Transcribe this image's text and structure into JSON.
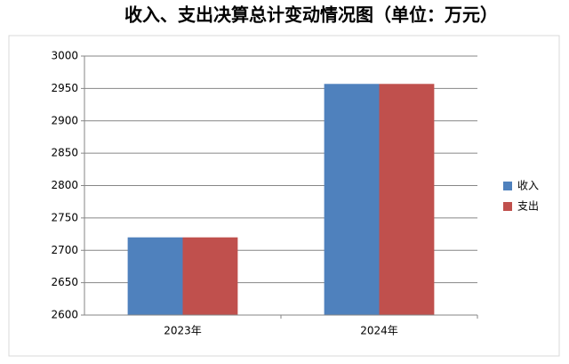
{
  "chart_data": {
    "type": "bar",
    "title": "收入、支出决算总计变动情况图（单位：万元）",
    "categories": [
      "2023年",
      "2024年"
    ],
    "series": [
      {
        "name": "收入",
        "color": "#4f81bd",
        "values": [
          2720,
          2957
        ]
      },
      {
        "name": "支出",
        "color": "#c0504d",
        "values": [
          2720,
          2957
        ]
      }
    ],
    "ylim": [
      2600,
      3000
    ],
    "yticks": [
      2600,
      2650,
      2700,
      2750,
      2800,
      2850,
      2900,
      2950,
      3000
    ],
    "grid": true,
    "legend": "right"
  }
}
